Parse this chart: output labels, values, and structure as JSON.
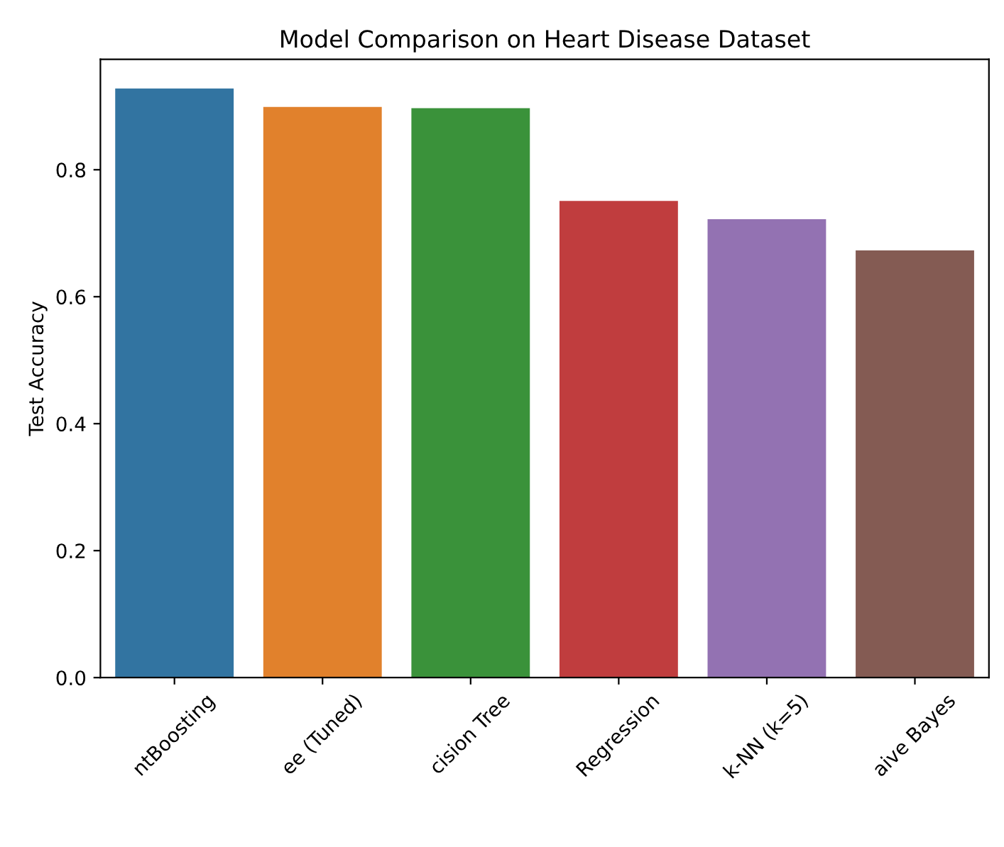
{
  "chart_data": {
    "type": "bar",
    "title": "Model Comparison on Heart Disease Dataset",
    "ylabel": "Test Accuracy",
    "categories": [
      "ntBoosting",
      "ee (Tuned)",
      "cision Tree",
      "Regression",
      "k-NN (k=5)",
      "aive Bayes"
    ],
    "values": [
      0.928,
      0.899,
      0.897,
      0.751,
      0.722,
      0.673
    ],
    "colors": [
      "#3274a1",
      "#e1812c",
      "#3a923a",
      "#c03d3e",
      "#9372b2",
      "#845b53"
    ],
    "ylim": [
      0,
      0.974
    ],
    "yticks": [
      {
        "value": 0,
        "label": "0.0"
      },
      0.2,
      0.4,
      0.6,
      0.8
    ],
    "grid": false,
    "legend": false
  }
}
